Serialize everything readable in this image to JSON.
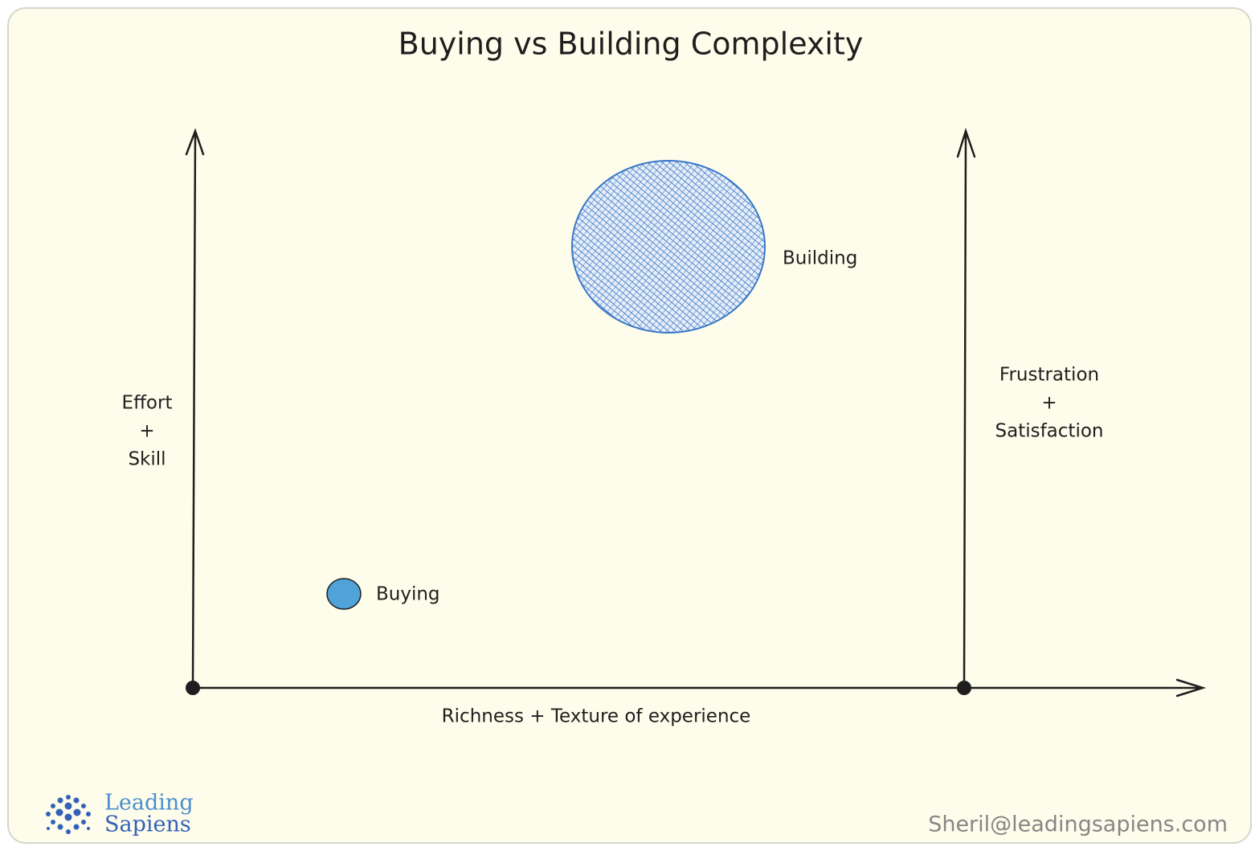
{
  "title": "Buying vs Building Complexity",
  "y_axis_left": {
    "lines": [
      "Effort",
      "+",
      "Skill"
    ]
  },
  "y_axis_right": {
    "lines": [
      "Frustration",
      "+",
      "Satisfaction"
    ]
  },
  "x_axis": {
    "label": "Richness + Texture of experience"
  },
  "nodes": [
    {
      "label": "Building"
    },
    {
      "label": "Buying"
    }
  ],
  "logo": {
    "lines": [
      "Leading",
      "Sapiens"
    ]
  },
  "footer": {
    "email": "Sheril@leadingsapiens.com"
  }
}
